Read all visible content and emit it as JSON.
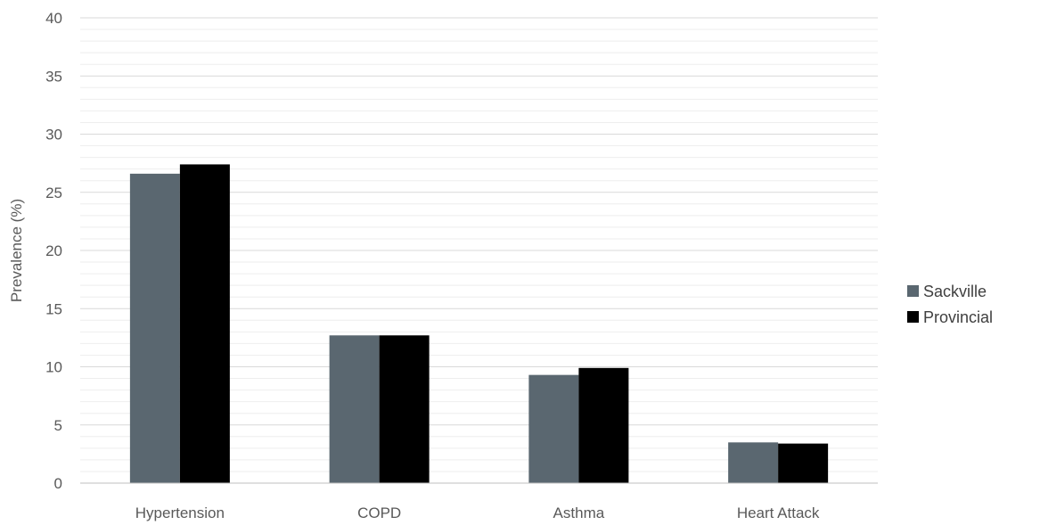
{
  "chart_data": {
    "type": "bar",
    "categories": [
      "Hypertension",
      "COPD",
      "Asthma",
      "Heart Attack"
    ],
    "series": [
      {
        "name": "Sackville",
        "color": "#5a6770",
        "values": [
          26.6,
          12.7,
          9.3,
          3.5
        ]
      },
      {
        "name": "Provincial",
        "color": "#000000",
        "values": [
          27.4,
          12.7,
          9.9,
          3.4
        ]
      }
    ],
    "title": "",
    "xlabel": "",
    "ylabel": "Prevalence (%)",
    "ylim": [
      0,
      40
    ],
    "yticks": [
      0,
      5,
      10,
      15,
      20,
      25,
      30,
      35,
      40
    ],
    "minor_grid_step": 1,
    "grid": true,
    "legend_position": "right"
  }
}
